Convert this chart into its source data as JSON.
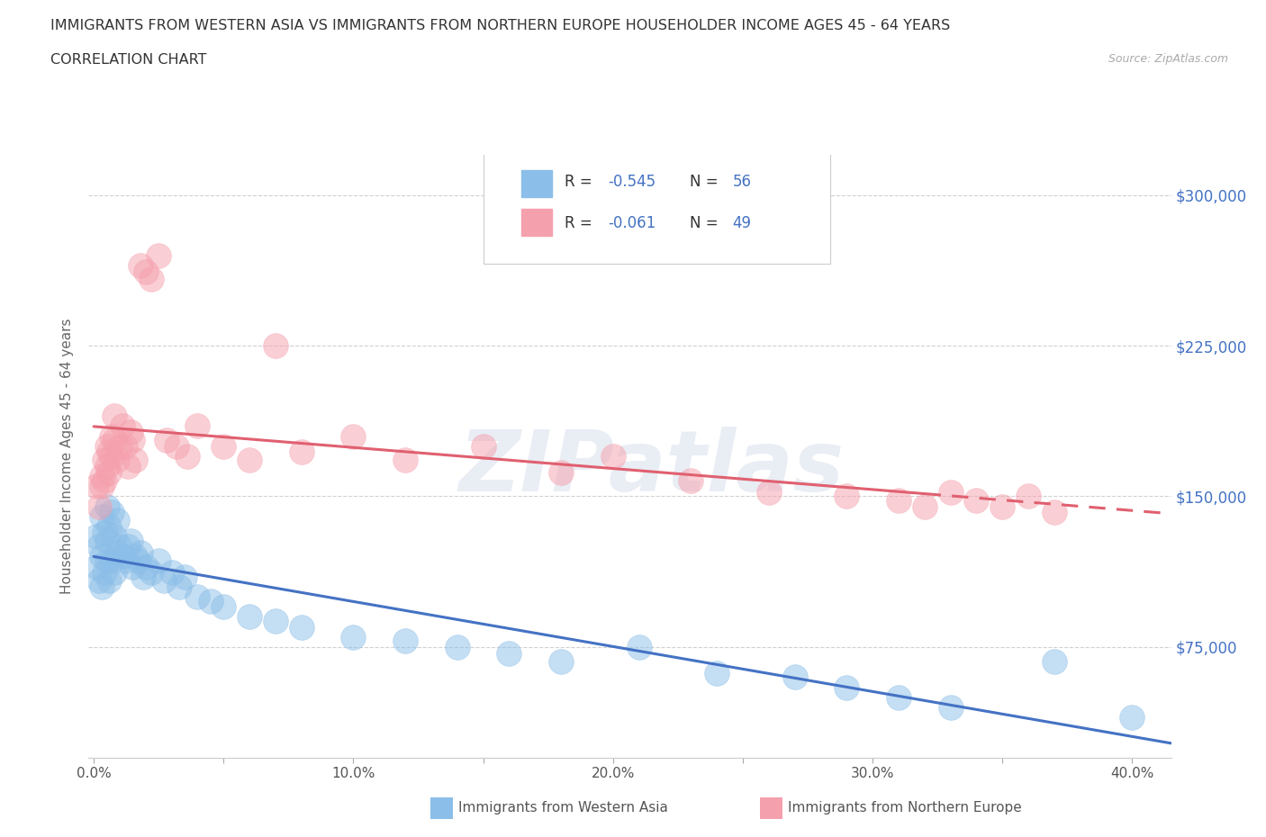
{
  "title_line1": "IMMIGRANTS FROM WESTERN ASIA VS IMMIGRANTS FROM NORTHERN EUROPE HOUSEHOLDER INCOME AGES 45 - 64 YEARS",
  "title_line2": "CORRELATION CHART",
  "source_text": "Source: ZipAtlas.com",
  "ylabel": "Householder Income Ages 45 - 64 years",
  "xlim": [
    -0.002,
    0.415
  ],
  "ylim": [
    20000,
    320000
  ],
  "ytick_vals": [
    75000,
    150000,
    225000,
    300000
  ],
  "ytick_labels": [
    "$75,000",
    "$150,000",
    "$225,000",
    "$300,000"
  ],
  "xtick_vals": [
    0.0,
    0.05,
    0.1,
    0.15,
    0.2,
    0.25,
    0.3,
    0.35,
    0.4
  ],
  "xtick_labels": [
    "0.0%",
    "",
    "10.0%",
    "",
    "20.0%",
    "",
    "30.0%",
    "",
    "40.0%"
  ],
  "blue_dot_color": "#8BBEE8",
  "pink_dot_color": "#F5A0AD",
  "blue_line_color": "#4472C4",
  "pink_line_color": "#E06070",
  "legend_r1": "-0.545",
  "legend_n1": "56",
  "legend_r2": "-0.061",
  "legend_n2": "49",
  "label1": "Immigrants from Western Asia",
  "label2": "Immigrants from Northern Europe",
  "watermark": "ZIPatlas",
  "background_color": "#FFFFFF",
  "grid_color": "#CCCCCC",
  "blue_x": [
    0.001,
    0.001,
    0.002,
    0.002,
    0.003,
    0.003,
    0.003,
    0.004,
    0.004,
    0.005,
    0.005,
    0.005,
    0.006,
    0.006,
    0.007,
    0.007,
    0.008,
    0.008,
    0.009,
    0.009,
    0.01,
    0.011,
    0.012,
    0.013,
    0.014,
    0.015,
    0.016,
    0.017,
    0.018,
    0.019,
    0.02,
    0.022,
    0.025,
    0.027,
    0.03,
    0.033,
    0.035,
    0.04,
    0.045,
    0.05,
    0.06,
    0.07,
    0.08,
    0.1,
    0.12,
    0.14,
    0.16,
    0.18,
    0.21,
    0.24,
    0.27,
    0.29,
    0.31,
    0.33,
    0.37,
    0.4
  ],
  "blue_y": [
    130000,
    115000,
    125000,
    108000,
    140000,
    120000,
    105000,
    132000,
    112000,
    145000,
    128000,
    118000,
    135000,
    108000,
    142000,
    118000,
    130000,
    112000,
    138000,
    122000,
    125000,
    120000,
    118000,
    125000,
    128000,
    115000,
    120000,
    118000,
    122000,
    110000,
    115000,
    112000,
    118000,
    108000,
    112000,
    105000,
    110000,
    100000,
    98000,
    95000,
    90000,
    88000,
    85000,
    80000,
    78000,
    75000,
    72000,
    68000,
    75000,
    62000,
    60000,
    55000,
    50000,
    45000,
    68000,
    40000
  ],
  "pink_x": [
    0.001,
    0.002,
    0.003,
    0.003,
    0.004,
    0.004,
    0.005,
    0.005,
    0.006,
    0.006,
    0.007,
    0.007,
    0.008,
    0.008,
    0.009,
    0.01,
    0.011,
    0.012,
    0.013,
    0.014,
    0.015,
    0.016,
    0.018,
    0.02,
    0.022,
    0.025,
    0.028,
    0.032,
    0.036,
    0.04,
    0.05,
    0.06,
    0.07,
    0.08,
    0.1,
    0.12,
    0.15,
    0.18,
    0.2,
    0.23,
    0.26,
    0.29,
    0.31,
    0.32,
    0.33,
    0.34,
    0.35,
    0.36,
    0.37
  ],
  "pink_y": [
    155000,
    145000,
    160000,
    155000,
    168000,
    158000,
    175000,
    165000,
    172000,
    162000,
    180000,
    170000,
    190000,
    178000,
    168000,
    175000,
    185000,
    175000,
    165000,
    182000,
    178000,
    168000,
    265000,
    262000,
    258000,
    270000,
    178000,
    175000,
    170000,
    185000,
    175000,
    168000,
    225000,
    172000,
    180000,
    168000,
    175000,
    162000,
    170000,
    158000,
    152000,
    150000,
    148000,
    145000,
    152000,
    148000,
    145000,
    150000,
    142000
  ],
  "pink_trend_solid_end": 0.32,
  "pink_trend_dash_start": 0.32
}
